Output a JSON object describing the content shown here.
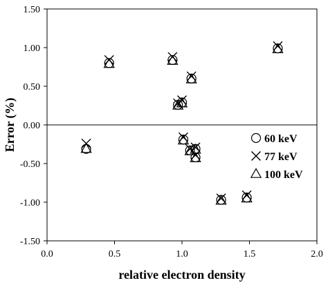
{
  "chart_data": {
    "type": "scatter",
    "title": "",
    "xlabel": "relative electron density",
    "ylabel": "Error (%)",
    "xlim": [
      0.0,
      2.0
    ],
    "ylim": [
      -1.5,
      1.5
    ],
    "xticks": [
      "0.0",
      "0.5",
      "1.0",
      "1.5",
      "2.0"
    ],
    "yticks": [
      "1.50",
      "1.00",
      "0.50",
      "0.00",
      "-0.50",
      "-1.00",
      "-1.50"
    ],
    "xtick_values": [
      0.0,
      0.5,
      1.0,
      1.5,
      2.0
    ],
    "ytick_values": [
      1.5,
      1.0,
      0.5,
      0.0,
      -0.5,
      -1.0,
      -1.5
    ],
    "grid": false,
    "legend_position": "right",
    "series": [
      {
        "name": "60 keV",
        "marker": "circle",
        "points": [
          [
            0.29,
            -0.31
          ],
          [
            0.46,
            0.8
          ],
          [
            0.93,
            0.84
          ],
          [
            0.97,
            0.26
          ],
          [
            1.0,
            0.29
          ],
          [
            1.01,
            -0.19
          ],
          [
            1.06,
            -0.33
          ],
          [
            1.07,
            0.6
          ],
          [
            1.1,
            -0.31
          ],
          [
            1.1,
            -0.42
          ],
          [
            1.29,
            -0.97
          ],
          [
            1.48,
            -0.94
          ],
          [
            1.71,
            0.99
          ]
        ]
      },
      {
        "name": "77 keV",
        "marker": "x",
        "points": [
          [
            0.29,
            -0.24
          ],
          [
            0.46,
            0.84
          ],
          [
            0.93,
            0.88
          ],
          [
            0.97,
            0.28
          ],
          [
            1.0,
            0.32
          ],
          [
            1.01,
            -0.16
          ],
          [
            1.06,
            -0.31
          ],
          [
            1.07,
            0.63
          ],
          [
            1.1,
            -0.29
          ],
          [
            1.1,
            -0.39
          ],
          [
            1.29,
            -0.95
          ],
          [
            1.48,
            -0.91
          ],
          [
            1.71,
            1.02
          ]
        ]
      },
      {
        "name": "100 keV",
        "marker": "triangle",
        "points": [
          [
            0.29,
            -0.31
          ],
          [
            0.46,
            0.79
          ],
          [
            0.93,
            0.83
          ],
          [
            0.97,
            0.25
          ],
          [
            1.0,
            0.28
          ],
          [
            1.01,
            -0.2
          ],
          [
            1.06,
            -0.34
          ],
          [
            1.07,
            0.59
          ],
          [
            1.1,
            -0.32
          ],
          [
            1.1,
            -0.43
          ],
          [
            1.29,
            -0.98
          ],
          [
            1.48,
            -0.95
          ],
          [
            1.71,
            0.98
          ]
        ]
      }
    ]
  }
}
